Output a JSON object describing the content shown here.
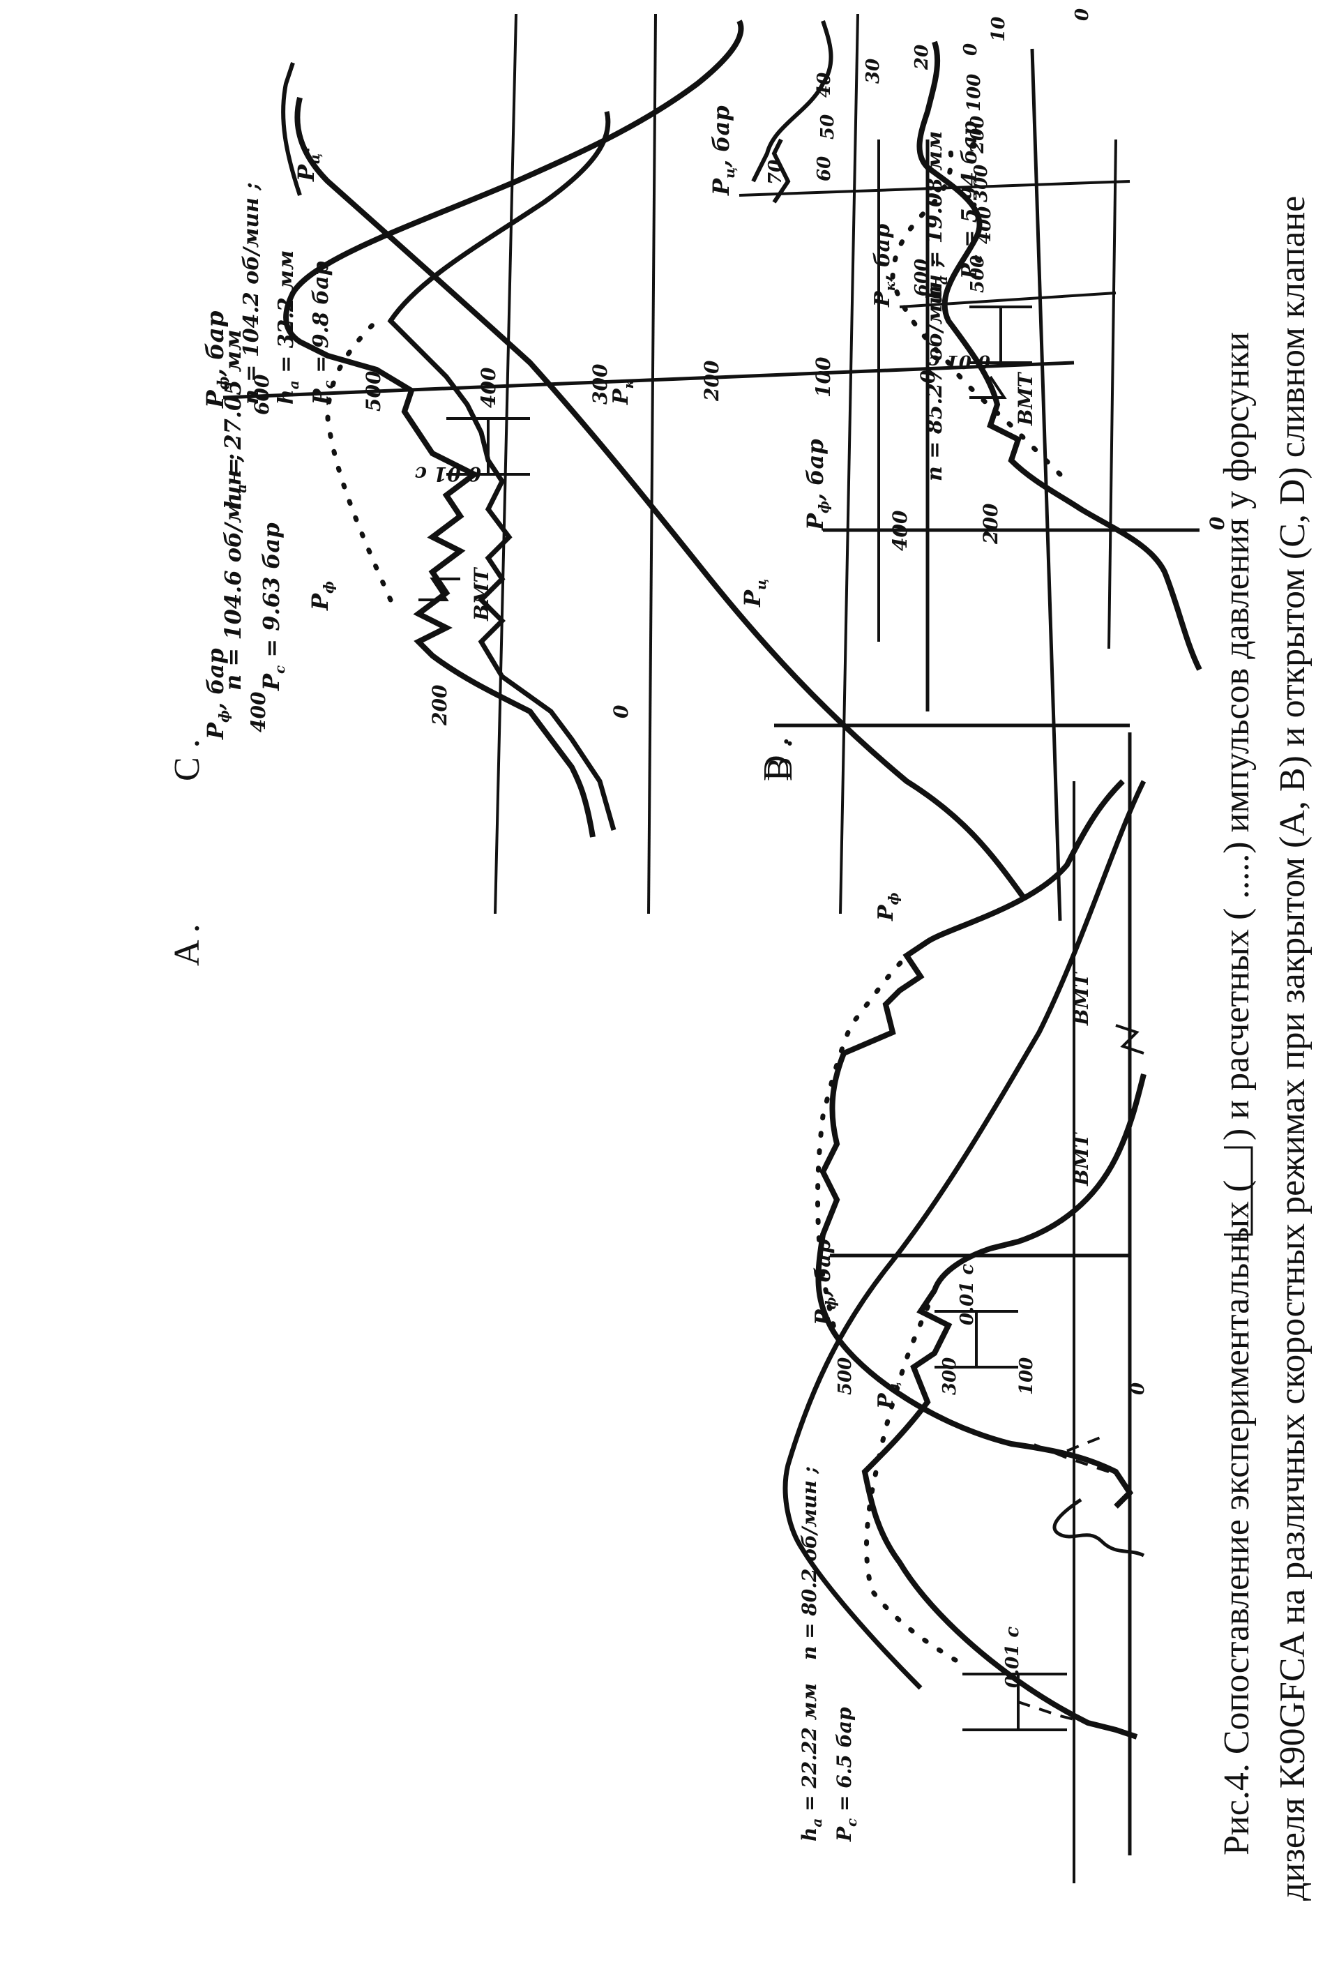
{
  "caption": {
    "line1a": "Рис.4. Сопоставление экспериментальных (",
    "line1b": ") и расчетных ( .....) импульсов давления у форсунки",
    "line2": "дизеля К90GFCA на различных скоростных режимах при закрытом (А, В) и открытом (С, D) сливном клапане"
  },
  "panels": {
    "A": {
      "letter": "A .",
      "axis_pf": "P",
      "axis_pf_sub": "ф",
      "axis_pf_unit": ", бар",
      "axis_pk": "P",
      "axis_pk_sub": "к",
      "axis_pk_unit": ", бар",
      "axis_pc": "P",
      "axis_pc_sub": "ц",
      "axis_pc_unit": ", бар",
      "params_1": "n = 104.6 об/мин ;",
      "params_2": "h",
      "params_2_sub": "a",
      "params_2_val": " = 27.05 мм",
      "params_3": "P",
      "params_3_sub": "c",
      "params_3_val": " = 9.63 бар",
      "ticks_pf": [
        "600",
        "500",
        "400",
        "300",
        "200",
        "100",
        "0"
      ],
      "ticks_pk": [
        "600",
        "500",
        "400",
        "300",
        "200",
        "100",
        "0"
      ],
      "ticks_pc": [
        "70",
        "60",
        "50",
        "40",
        "30",
        "20",
        "10",
        "0"
      ],
      "label_pf": "P",
      "label_pf_sub": "ф",
      "label_pc": "P",
      "label_pc_sub": "ц",
      "label_pc2": "P",
      "label_pc2_sub": "ц",
      "label_pc2_prime": "'",
      "label_pk": "P",
      "label_pk_sub": "к",
      "scale": "0.01 c",
      "bmt": "BMT"
    },
    "B": {
      "letter": "B .",
      "axis": "P",
      "axis_sub": "ф",
      "axis_unit": ", бар",
      "params_1": "n = 85.27 об/мин ;",
      "params_2": "h",
      "params_2_sub": "a",
      "params_2_val": " = 19.08 мм",
      "params_3": "P",
      "params_3_sub": "c",
      "params_3_val": " = 5.94 бар",
      "ticks": [
        "400",
        "200",
        "0"
      ],
      "scale": "0.01 c",
      "bmt": "BMT"
    },
    "C": {
      "letter": "C .",
      "axis": "P",
      "axis_sub": "ф",
      "axis_unit": ", бар",
      "params_1": "n = 104.2 об/мин ;",
      "params_2": "h",
      "params_2_sub": "a",
      "params_2_val": " = 32.2 мм",
      "params_3": "P",
      "params_3_sub": "c",
      "params_3_val": " = 9.8 бар",
      "ticks": [
        "400",
        "200",
        "0"
      ],
      "label_pf": "P",
      "label_pf_sub": "ф",
      "label_pc": "P",
      "label_pc_sub": "ц",
      "scale": "0.01 c",
      "bmt": "BMT"
    },
    "D": {
      "letter": "D .",
      "axis": "P",
      "axis_sub": "ф",
      "axis_unit": ", бар",
      "params_1": "n = 80.2 об/мин ;",
      "params_2": "h",
      "params_2_sub": "a",
      "params_2_val": " = 22.22 мм",
      "params_3": "P",
      "params_3_sub": "c",
      "params_3_val": " = 6.5 бар",
      "ticks": [
        "500",
        "300",
        "100",
        "0"
      ],
      "scale": "0.01 c",
      "bmt": "BMT"
    }
  },
  "colors": {
    "ink": "#111111",
    "paper": "#ffffff"
  },
  "chart_data": [
    {
      "panel": "A",
      "type": "line",
      "series": [
        {
          "name": "P_ф",
          "style": "experimental",
          "x": [
            0,
            1,
            2,
            3,
            4,
            5,
            6,
            7,
            8,
            9,
            10,
            11,
            12,
            13,
            14
          ],
          "y": [
            100,
            110,
            200,
            320,
            380,
            430,
            480,
            500,
            560,
            480,
            380,
            150,
            0,
            120,
            170
          ]
        },
        {
          "name": "P_ф",
          "style": "calculated",
          "x": [
            5,
            6,
            7,
            8,
            9
          ],
          "y": [
            430,
            470,
            500,
            540,
            520
          ]
        },
        {
          "name": "P_к",
          "style": "experimental",
          "x": [
            0,
            1,
            2,
            3,
            4,
            5,
            6,
            7,
            8,
            9,
            10,
            11,
            12,
            13,
            14
          ],
          "y": [
            90,
            100,
            180,
            280,
            320,
            360,
            400,
            430,
            460,
            400,
            250,
            150,
            180,
            200,
            180
          ]
        },
        {
          "name": "P_ц",
          "style": "experimental",
          "x": [
            0,
            2,
            4,
            6,
            8,
            10,
            12,
            14
          ],
          "y": [
            8,
            10,
            20,
            30,
            40,
            55,
            58,
            63
          ]
        }
      ]
    },
    {
      "panel": "B",
      "type": "line",
      "series": [
        {
          "name": "",
          "style": "experimental",
          "x": [
            0,
            1,
            2,
            3,
            4,
            5,
            6,
            7,
            8,
            9,
            10,
            11
          ],
          "y": [
            10,
            60,
            300,
            250,
            440,
            380,
            330,
            220,
            150,
            120,
            90,
            60
          ]
        },
        {
          "name": "",
          "style": "calculated",
          "x": [
            2,
            3,
            4,
            5,
            6,
            7,
            8,
            9
          ],
          "y": [
            250,
            180,
            360,
            520,
            420,
            230,
            120,
            80
          ]
        }
      ]
    },
    {
      "panel": "C",
      "type": "line",
      "series": [
        {
          "name": "P_ф",
          "style": "experimental",
          "x": [
            0,
            1,
            2,
            3,
            4,
            5,
            6,
            7,
            8,
            9,
            10
          ],
          "y": [
            10,
            60,
            300,
            450,
            380,
            420,
            400,
            420,
            360,
            150,
            90
          ]
        },
        {
          "name": "P_ф",
          "style": "calculated",
          "x": [
            2,
            3,
            4,
            5,
            6,
            7,
            8,
            9
          ],
          "y": [
            300,
            360,
            440,
            370,
            390,
            420,
            380,
            120
          ]
        },
        {
          "name": "P_ц",
          "style": "experimental",
          "x": [
            0,
            2,
            4,
            6,
            8,
            10
          ],
          "y": [
            20,
            100,
            180,
            300,
            370,
            420
          ]
        }
      ]
    },
    {
      "panel": "D",
      "type": "line",
      "series": [
        {
          "name": "",
          "style": "experimental",
          "x": [
            0,
            1,
            2,
            3,
            4,
            5,
            6,
            7,
            8,
            9,
            10,
            11
          ],
          "y": [
            10,
            80,
            370,
            250,
            310,
            290,
            360,
            420,
            300,
            150,
            100,
            120
          ]
        },
        {
          "name": "",
          "style": "calculated",
          "x": [
            2,
            3,
            4,
            5,
            6,
            7,
            8,
            9,
            10
          ],
          "y": [
            370,
            300,
            280,
            320,
            420,
            520,
            420,
            180,
            90
          ]
        }
      ]
    }
  ]
}
